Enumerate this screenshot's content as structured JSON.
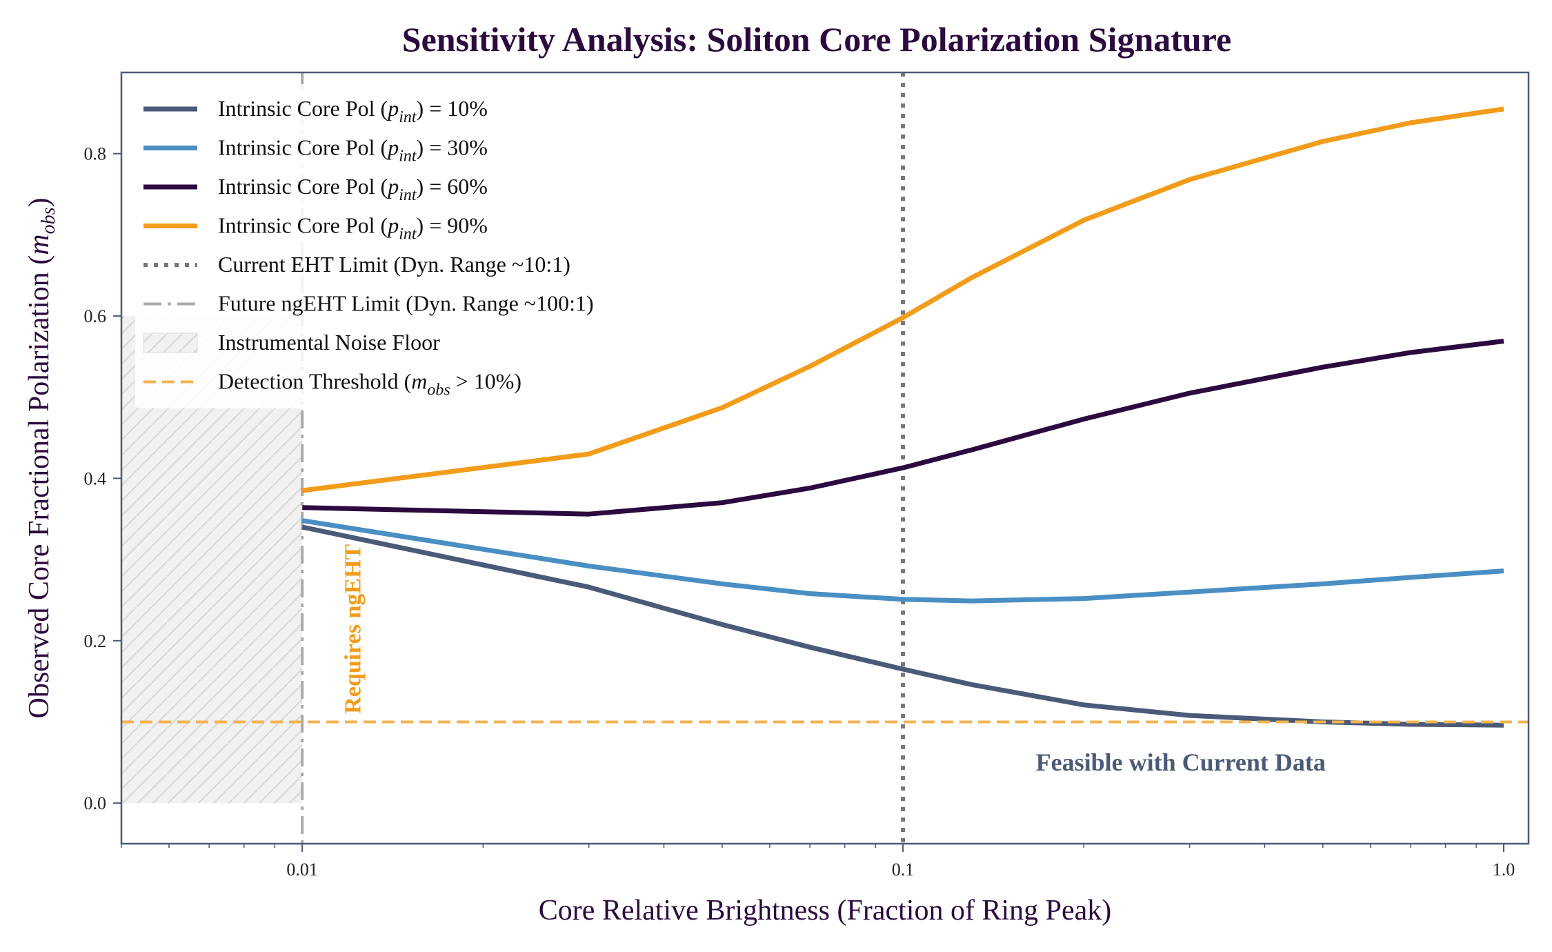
{
  "chart_data": {
    "type": "line",
    "title": "Sensitivity Analysis: Soliton Core Polarization Signature",
    "xlabel": "Core Relative Brightness (Fraction of Ring Peak)",
    "ylabel": {
      "main": "Observed Core Fractional Polarization (",
      "var": "m",
      "sub": "obs",
      "close": ")"
    },
    "xscale": "log",
    "xlim": [
      0.005,
      1.1
    ],
    "ylim": [
      -0.05,
      0.9
    ],
    "xticks": [
      {
        "value": 0.01,
        "label": "0.01"
      },
      {
        "value": 0.1,
        "label": "0.1"
      },
      {
        "value": 1.0,
        "label": "1.0"
      }
    ],
    "yticks": [
      {
        "value": 0.0,
        "label": "0.0"
      },
      {
        "value": 0.2,
        "label": "0.2"
      },
      {
        "value": 0.4,
        "label": "0.4"
      },
      {
        "value": 0.6,
        "label": "0.6"
      },
      {
        "value": 0.8,
        "label": "0.8"
      }
    ],
    "grid": false,
    "legend_position": "upper-left",
    "x": [
      0.01,
      0.03,
      0.05,
      0.07,
      0.1,
      0.13,
      0.2,
      0.3,
      0.5,
      0.7,
      1.0
    ],
    "series": [
      {
        "name": {
          "pre": "Intrinsic Core Pol (",
          "var": "p",
          "sub": "int",
          "post": ") = 10%"
        },
        "color": "#4a5a78",
        "values": [
          0.34,
          0.266,
          0.22,
          0.192,
          0.165,
          0.146,
          0.121,
          0.108,
          0.1,
          0.097,
          0.096
        ]
      },
      {
        "name": {
          "pre": "Intrinsic Core Pol (",
          "var": "p",
          "sub": "int",
          "post": ") = 30%"
        },
        "color": "#4a8fc4",
        "values": [
          0.348,
          0.292,
          0.27,
          0.258,
          0.251,
          0.249,
          0.252,
          0.26,
          0.27,
          0.278,
          0.286
        ]
      },
      {
        "name": {
          "pre": "Intrinsic Core Pol (",
          "var": "p",
          "sub": "int",
          "post": ") = 60%"
        },
        "color": "#2c0a3f",
        "values": [
          0.364,
          0.356,
          0.37,
          0.388,
          0.413,
          0.435,
          0.473,
          0.505,
          0.537,
          0.555,
          0.569
        ]
      },
      {
        "name": {
          "pre": "Intrinsic Core Pol (",
          "var": "p",
          "sub": "int",
          "post": ") = 90%"
        },
        "color": "#f29c1a",
        "values": [
          0.385,
          0.43,
          0.487,
          0.538,
          0.598,
          0.647,
          0.718,
          0.768,
          0.815,
          0.838,
          0.855
        ]
      }
    ],
    "reference_lines": {
      "current_eht": {
        "x": 0.1,
        "label": "Current EHT Limit (Dyn. Range ~10:1)",
        "color": "#777777"
      },
      "future_ngeht": {
        "x": 0.01,
        "label": "Future ngEHT Limit (Dyn. Range ~100:1)",
        "color": "#aaaaaa"
      },
      "detection_threshold": {
        "y": 0.1,
        "label": {
          "pre": "Detection Threshold (",
          "var": "m",
          "sub": "obs",
          "post": " > 10%)"
        },
        "color": "#f2b350"
      }
    },
    "noise_floor": {
      "x_range": [
        0.005,
        0.01
      ],
      "y_range": [
        0.0,
        0.6
      ],
      "label": "Instrumental Noise Floor"
    },
    "annotations": [
      {
        "text": "Requires ngEHT",
        "x": 0.0125,
        "y": 0.11,
        "rotation": -90,
        "color": "#f29c1a"
      },
      {
        "text": "Feasible with Current Data",
        "x": 0.29,
        "y": 0.04,
        "color": "#4a5a78"
      }
    ]
  }
}
